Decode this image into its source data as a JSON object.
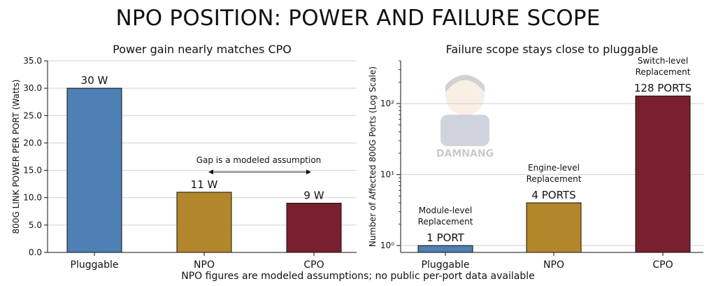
{
  "title": "NPO POSITION: POWER AND FAILURE SCOPE",
  "footnote": "NPO figures are modeled assumptions; no public per-port data available",
  "watermark_text": "DAMNANG",
  "colors": {
    "pluggable": "#4E7FB5",
    "npo": "#B2862B",
    "cpo": "#7A1F2E",
    "grid": "#d0d0d0"
  },
  "chart_data": [
    {
      "type": "bar",
      "title": "Power gain nearly matches CPO",
      "ylabel": "800G LINK POWER PER PORT (Watts)",
      "xlabel": "",
      "categories": [
        "Pluggable",
        "NPO",
        "CPO"
      ],
      "values": [
        30,
        11,
        9
      ],
      "data_labels": [
        "30 W",
        "11 W",
        "9 W"
      ],
      "ylim": [
        0,
        35
      ],
      "yticks": [
        "0.0",
        "5.0",
        "10.0",
        "15.0",
        "20.0",
        "25.0",
        "30.0",
        "35.0"
      ],
      "annotation": "Gap is a modeled assumption",
      "grid": true
    },
    {
      "type": "bar",
      "title": "Failure scope stays close to pluggable",
      "ylabel": "Number of Affected 800G Ports (Log Scale)",
      "xlabel": "",
      "yscale": "log",
      "categories": [
        "Pluggable",
        "NPO",
        "CPO"
      ],
      "values": [
        1,
        4,
        128
      ],
      "data_labels": [
        "1 PORT",
        "4 PORTS",
        "128 PORTS"
      ],
      "scope_labels": [
        [
          "Module-level",
          "Replacement"
        ],
        [
          "Engine-level",
          "Replacement"
        ],
        [
          "Switch-level",
          "Replacement"
        ]
      ],
      "ylim": [
        0.8,
        400
      ],
      "yticks": [
        "10⁰",
        "10¹",
        "10²"
      ],
      "grid": true
    }
  ]
}
